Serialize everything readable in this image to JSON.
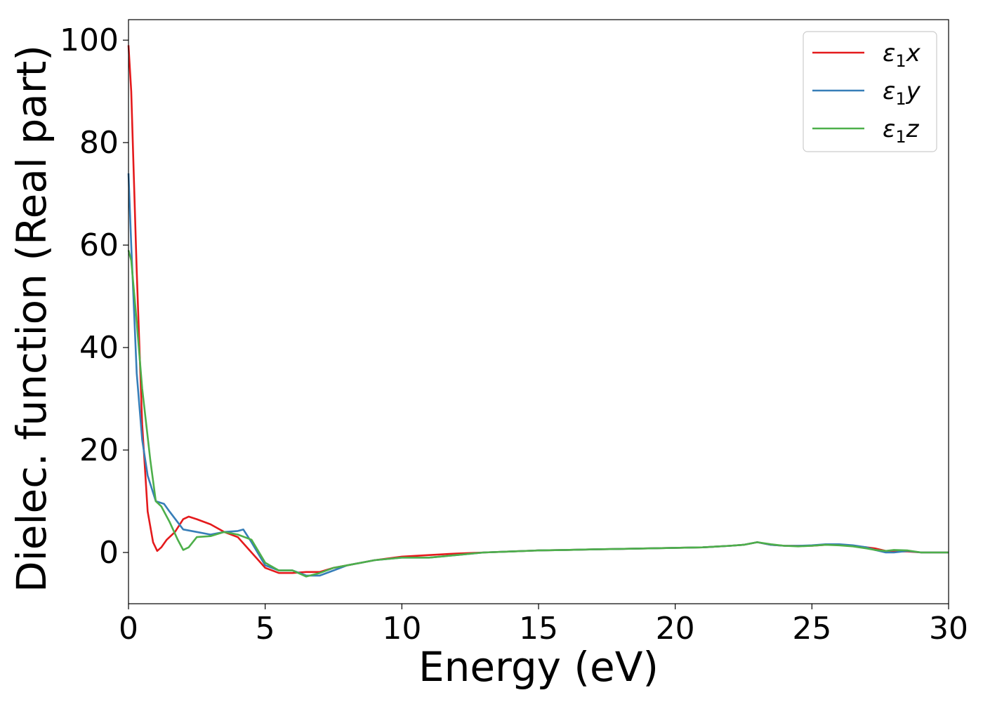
{
  "chart_data": {
    "type": "line",
    "title": "",
    "xlabel": "Energy (eV)",
    "ylabel": "Dielec. function (Real part)",
    "xlim": [
      0,
      30
    ],
    "ylim": [
      -10,
      104
    ],
    "xticks": [
      0,
      5,
      10,
      15,
      20,
      25,
      30
    ],
    "yticks": [
      0,
      20,
      40,
      60,
      80,
      100
    ],
    "grid": false,
    "legend_position": "top-right",
    "series": [
      {
        "name": "ε₁x",
        "legend_main": "ε",
        "legend_sub": "1",
        "legend_tail": "x",
        "color": "#e41a1c",
        "x": [
          0,
          0.1,
          0.3,
          0.5,
          0.7,
          0.9,
          1.05,
          1.2,
          1.4,
          1.7,
          2.0,
          2.2,
          2.5,
          3.0,
          3.5,
          4.0,
          4.5,
          5.0,
          5.5,
          6.0,
          6.5,
          7.0,
          7.5,
          8.0,
          9.0,
          10.0,
          11.0,
          12.0,
          13.0,
          14.0,
          15.0,
          16.0,
          17.0,
          18.0,
          19.0,
          20.0,
          21.0,
          22.0,
          22.5,
          23.0,
          23.5,
          24.0,
          24.5,
          25.0,
          25.5,
          26.0,
          26.5,
          27.0,
          27.3,
          27.7,
          28.0,
          28.5,
          29.0,
          29.5,
          30.0
        ],
        "y": [
          99,
          90,
          55,
          25,
          8,
          2,
          0.3,
          1,
          2.5,
          4,
          6.5,
          7,
          6.5,
          5.5,
          4,
          3,
          0,
          -3,
          -4,
          -4,
          -3.8,
          -3.8,
          -3,
          -2.5,
          -1.5,
          -0.8,
          -0.5,
          -0.2,
          0,
          0.2,
          0.4,
          0.5,
          0.6,
          0.7,
          0.8,
          0.9,
          1.0,
          1.3,
          1.5,
          2.0,
          1.5,
          1.3,
          1.3,
          1.3,
          1.5,
          1.5,
          1.3,
          1.0,
          0.8,
          0.3,
          0.2,
          0.2,
          0,
          0,
          0
        ]
      },
      {
        "name": "ε₁y",
        "legend_main": "ε",
        "legend_sub": "1",
        "legend_tail": "y",
        "color": "#377eb8",
        "x": [
          0,
          0.1,
          0.3,
          0.5,
          0.7,
          1.0,
          1.3,
          1.5,
          2.0,
          2.5,
          3.0,
          3.5,
          4.0,
          4.2,
          4.5,
          5.0,
          5.5,
          6.0,
          6.5,
          7.0,
          7.5,
          8.0,
          9.0,
          10.0,
          11.0,
          12.0,
          13.0,
          14.0,
          15.0,
          16.0,
          17.0,
          18.0,
          19.0,
          20.0,
          21.0,
          22.0,
          22.5,
          23.0,
          23.5,
          24.0,
          24.5,
          25.0,
          25.5,
          26.0,
          26.5,
          27.0,
          27.3,
          27.7,
          28.0,
          28.5,
          29.0,
          29.5,
          30.0
        ],
        "y": [
          74,
          60,
          35,
          22,
          15,
          10,
          9.5,
          8,
          4.5,
          4,
          3.5,
          4,
          4.2,
          4.5,
          2,
          -2.5,
          -3.5,
          -3.5,
          -4.5,
          -4.5,
          -3.5,
          -2.5,
          -1.5,
          -1.0,
          -1.0,
          -0.5,
          0,
          0.2,
          0.4,
          0.5,
          0.6,
          0.7,
          0.8,
          0.9,
          1.0,
          1.3,
          1.5,
          2.0,
          1.5,
          1.3,
          1.3,
          1.4,
          1.6,
          1.6,
          1.4,
          1.0,
          0.5,
          0,
          0,
          0.3,
          0,
          0,
          0
        ]
      },
      {
        "name": "ε₁z",
        "legend_main": "ε",
        "legend_sub": "1",
        "legend_tail": "z",
        "color": "#4daf4a",
        "x": [
          0,
          0.1,
          0.3,
          0.5,
          0.8,
          1.0,
          1.2,
          1.5,
          1.8,
          2.0,
          2.2,
          2.5,
          3.0,
          3.5,
          4.0,
          4.5,
          5.0,
          5.5,
          6.0,
          6.5,
          7.0,
          7.5,
          8.0,
          9.0,
          10.0,
          11.0,
          12.0,
          13.0,
          14.0,
          15.0,
          16.0,
          17.0,
          18.0,
          19.0,
          20.0,
          21.0,
          22.0,
          22.5,
          23.0,
          23.5,
          24.0,
          24.5,
          25.0,
          25.5,
          26.0,
          26.5,
          27.0,
          27.3,
          27.7,
          28.0,
          28.5,
          29.0,
          29.5,
          30.0
        ],
        "y": [
          59,
          57,
          45,
          32,
          18,
          10,
          9,
          6,
          2.5,
          0.5,
          1,
          3,
          3.2,
          4,
          3.5,
          2.5,
          -2,
          -3.5,
          -3.5,
          -4.7,
          -4,
          -3,
          -2.5,
          -1.5,
          -1.0,
          -1.0,
          -0.5,
          0,
          0.2,
          0.4,
          0.5,
          0.6,
          0.7,
          0.8,
          0.9,
          1.0,
          1.3,
          1.5,
          2.0,
          1.6,
          1.3,
          1.2,
          1.3,
          1.5,
          1.4,
          1.2,
          0.8,
          0.5,
          0.3,
          0.5,
          0.4,
          0,
          0,
          0
        ]
      }
    ]
  }
}
